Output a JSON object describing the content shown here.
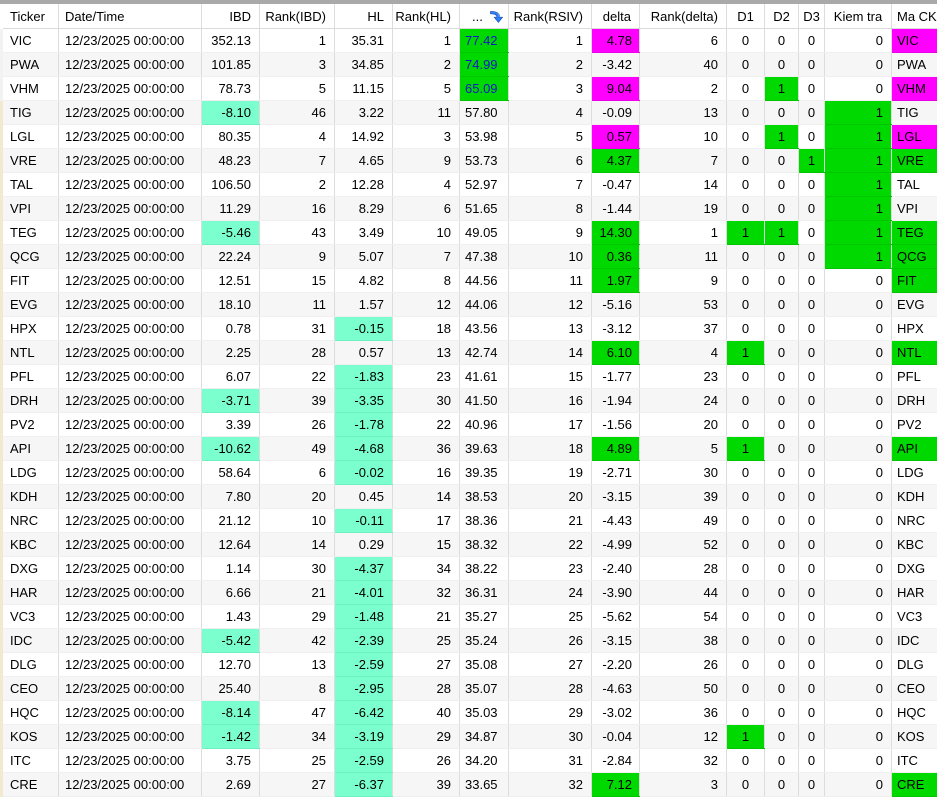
{
  "app": {
    "description": "stock exploration results table"
  },
  "colors": {
    "highlight_green": "#00d900",
    "highlight_magenta": "#ff00ff",
    "highlight_teal": "#7bffcf",
    "rsiv_text_blue": "#1414cc",
    "sort_icon_blue": "#2f7df6",
    "top_strip_gray": "#a9a9a9"
  },
  "table": {
    "columns": [
      {
        "key": "ticker",
        "label": "Ticker",
        "align": "left",
        "header_align": "left"
      },
      {
        "key": "datetime",
        "label": "Date/Time",
        "align": "left",
        "header_align": "left"
      },
      {
        "key": "ibd",
        "label": "IBD",
        "align": "right",
        "header_align": "right"
      },
      {
        "key": "rank_ibd",
        "label": "Rank(IBD)",
        "align": "right",
        "header_align": "right"
      },
      {
        "key": "hl",
        "label": "HL",
        "align": "right",
        "header_align": "right"
      },
      {
        "key": "rank_hl",
        "label": "Rank(HL)",
        "align": "right",
        "header_align": "right"
      },
      {
        "key": "rsiv",
        "label": "...",
        "align": "left",
        "header_align": "left",
        "sort_icon": "sort-descending-icon"
      },
      {
        "key": "rank_rsiv",
        "label": "Rank(RSIV)",
        "align": "right",
        "header_align": "right"
      },
      {
        "key": "delta",
        "label": "delta",
        "align": "right",
        "header_align": "right"
      },
      {
        "key": "rank_delta",
        "label": "Rank(delta)",
        "align": "right",
        "header_align": "right"
      },
      {
        "key": "d1",
        "label": "D1",
        "align": "center",
        "header_align": "center"
      },
      {
        "key": "d2",
        "label": "D2",
        "align": "center",
        "header_align": "center"
      },
      {
        "key": "d3",
        "label": "D3",
        "align": "center",
        "header_align": "center"
      },
      {
        "key": "kiem_tra",
        "label": "Kiem tra",
        "align": "right",
        "header_align": "center"
      },
      {
        "key": "ma_ck",
        "label": "Ma CK",
        "align": "left",
        "header_align": "left"
      }
    ],
    "rows": [
      [
        "VIC",
        "12/23/2025 00:00:00",
        "352.13",
        "1",
        "35.31",
        "1",
        {
          "v": "77.42",
          "bg": "green",
          "fg": "blue"
        },
        "1",
        {
          "v": "4.78",
          "bg": "magenta"
        },
        "6",
        "0",
        "0",
        "0",
        "0",
        {
          "v": "VIC",
          "bg": "magenta"
        }
      ],
      [
        "PWA",
        "12/23/2025 00:00:00",
        "101.85",
        "3",
        "34.85",
        "2",
        {
          "v": "74.99",
          "bg": "green",
          "fg": "blue"
        },
        "2",
        "-3.42",
        "40",
        "0",
        "0",
        "0",
        "0",
        "PWA"
      ],
      [
        "VHM",
        "12/23/2025 00:00:00",
        "78.73",
        "5",
        "11.15",
        "5",
        {
          "v": "65.09",
          "bg": "green",
          "fg": "blue"
        },
        "3",
        {
          "v": "9.04",
          "bg": "magenta"
        },
        "2",
        "0",
        {
          "v": "1",
          "bg": "green"
        },
        "0",
        "0",
        {
          "v": "VHM",
          "bg": "magenta"
        }
      ],
      [
        "TIG",
        "12/23/2025 00:00:00",
        {
          "v": "-8.10",
          "bg": "teal"
        },
        "46",
        "3.22",
        "11",
        "57.80",
        "4",
        "-0.09",
        "13",
        "0",
        "0",
        "0",
        {
          "v": "1",
          "bg": "green"
        },
        "TIG"
      ],
      [
        "LGL",
        "12/23/2025 00:00:00",
        "80.35",
        "4",
        "14.92",
        "3",
        "53.98",
        "5",
        {
          "v": "0.57",
          "bg": "magenta"
        },
        "10",
        "0",
        {
          "v": "1",
          "bg": "green"
        },
        "0",
        {
          "v": "1",
          "bg": "green"
        },
        {
          "v": "LGL",
          "bg": "magenta"
        }
      ],
      [
        "VRE",
        "12/23/2025 00:00:00",
        "48.23",
        "7",
        "4.65",
        "9",
        "53.73",
        "6",
        {
          "v": "4.37",
          "bg": "green"
        },
        "7",
        "0",
        "0",
        {
          "v": "1",
          "bg": "green"
        },
        {
          "v": "1",
          "bg": "green"
        },
        {
          "v": "VRE",
          "bg": "green"
        }
      ],
      [
        "TAL",
        "12/23/2025 00:00:00",
        "106.50",
        "2",
        "12.28",
        "4",
        "52.97",
        "7",
        "-0.47",
        "14",
        "0",
        "0",
        "0",
        {
          "v": "1",
          "bg": "green"
        },
        "TAL"
      ],
      [
        "VPI",
        "12/23/2025 00:00:00",
        "11.29",
        "16",
        "8.29",
        "6",
        "51.65",
        "8",
        "-1.44",
        "19",
        "0",
        "0",
        "0",
        {
          "v": "1",
          "bg": "green"
        },
        "VPI"
      ],
      [
        "TEG",
        "12/23/2025 00:00:00",
        {
          "v": "-5.46",
          "bg": "teal"
        },
        "43",
        "3.49",
        "10",
        "49.05",
        "9",
        {
          "v": "14.30",
          "bg": "green"
        },
        "1",
        {
          "v": "1",
          "bg": "green"
        },
        {
          "v": "1",
          "bg": "green"
        },
        "0",
        {
          "v": "1",
          "bg": "green"
        },
        {
          "v": "TEG",
          "bg": "green"
        }
      ],
      [
        "QCG",
        "12/23/2025 00:00:00",
        "22.24",
        "9",
        "5.07",
        "7",
        "47.38",
        "10",
        {
          "v": "0.36",
          "bg": "green"
        },
        "11",
        "0",
        "0",
        "0",
        {
          "v": "1",
          "bg": "green"
        },
        {
          "v": "QCG",
          "bg": "green"
        }
      ],
      [
        "FIT",
        "12/23/2025 00:00:00",
        "12.51",
        "15",
        "4.82",
        "8",
        "44.56",
        "11",
        {
          "v": "1.97",
          "bg": "green"
        },
        "9",
        "0",
        "0",
        "0",
        "0",
        {
          "v": "FIT",
          "bg": "green"
        }
      ],
      [
        "EVG",
        "12/23/2025 00:00:00",
        "18.10",
        "11",
        "1.57",
        "12",
        "44.06",
        "12",
        "-5.16",
        "53",
        "0",
        "0",
        "0",
        "0",
        "EVG"
      ],
      [
        "HPX",
        "12/23/2025 00:00:00",
        "0.78",
        "31",
        {
          "v": "-0.15",
          "bg": "teal"
        },
        "18",
        "43.56",
        "13",
        "-3.12",
        "37",
        "0",
        "0",
        "0",
        "0",
        "HPX"
      ],
      [
        "NTL",
        "12/23/2025 00:00:00",
        "2.25",
        "28",
        "0.57",
        "13",
        "42.74",
        "14",
        {
          "v": "6.10",
          "bg": "green"
        },
        "4",
        {
          "v": "1",
          "bg": "green"
        },
        "0",
        "0",
        "0",
        {
          "v": "NTL",
          "bg": "green"
        }
      ],
      [
        "PFL",
        "12/23/2025 00:00:00",
        "6.07",
        "22",
        {
          "v": "-1.83",
          "bg": "teal"
        },
        "23",
        "41.61",
        "15",
        "-1.77",
        "23",
        "0",
        "0",
        "0",
        "0",
        "PFL"
      ],
      [
        "DRH",
        "12/23/2025 00:00:00",
        {
          "v": "-3.71",
          "bg": "teal"
        },
        "39",
        {
          "v": "-3.35",
          "bg": "teal"
        },
        "30",
        "41.50",
        "16",
        "-1.94",
        "24",
        "0",
        "0",
        "0",
        "0",
        "DRH"
      ],
      [
        "PV2",
        "12/23/2025 00:00:00",
        "3.39",
        "26",
        {
          "v": "-1.78",
          "bg": "teal"
        },
        "22",
        "40.96",
        "17",
        "-1.56",
        "20",
        "0",
        "0",
        "0",
        "0",
        "PV2"
      ],
      [
        "API",
        "12/23/2025 00:00:00",
        {
          "v": "-10.62",
          "bg": "teal"
        },
        "49",
        {
          "v": "-4.68",
          "bg": "teal"
        },
        "36",
        "39.63",
        "18",
        {
          "v": "4.89",
          "bg": "green"
        },
        "5",
        {
          "v": "1",
          "bg": "green"
        },
        "0",
        "0",
        "0",
        {
          "v": "API",
          "bg": "green"
        }
      ],
      [
        "LDG",
        "12/23/2025 00:00:00",
        "58.64",
        "6",
        {
          "v": "-0.02",
          "bg": "teal"
        },
        "16",
        "39.35",
        "19",
        "-2.71",
        "30",
        "0",
        "0",
        "0",
        "0",
        "LDG"
      ],
      [
        "KDH",
        "12/23/2025 00:00:00",
        "7.80",
        "20",
        "0.45",
        "14",
        "38.53",
        "20",
        "-3.15",
        "39",
        "0",
        "0",
        "0",
        "0",
        "KDH"
      ],
      [
        "NRC",
        "12/23/2025 00:00:00",
        "21.12",
        "10",
        {
          "v": "-0.11",
          "bg": "teal"
        },
        "17",
        "38.36",
        "21",
        "-4.43",
        "49",
        "0",
        "0",
        "0",
        "0",
        "NRC"
      ],
      [
        "KBC",
        "12/23/2025 00:00:00",
        "12.64",
        "14",
        "0.29",
        "15",
        "38.32",
        "22",
        "-4.99",
        "52",
        "0",
        "0",
        "0",
        "0",
        "KBC"
      ],
      [
        "DXG",
        "12/23/2025 00:00:00",
        "1.14",
        "30",
        {
          "v": "-4.37",
          "bg": "teal"
        },
        "34",
        "38.22",
        "23",
        "-2.40",
        "28",
        "0",
        "0",
        "0",
        "0",
        "DXG"
      ],
      [
        "HAR",
        "12/23/2025 00:00:00",
        "6.66",
        "21",
        {
          "v": "-4.01",
          "bg": "teal"
        },
        "32",
        "36.31",
        "24",
        "-3.90",
        "44",
        "0",
        "0",
        "0",
        "0",
        "HAR"
      ],
      [
        "VC3",
        "12/23/2025 00:00:00",
        "1.43",
        "29",
        {
          "v": "-1.48",
          "bg": "teal"
        },
        "21",
        "35.27",
        "25",
        "-5.62",
        "54",
        "0",
        "0",
        "0",
        "0",
        "VC3"
      ],
      [
        "IDC",
        "12/23/2025 00:00:00",
        {
          "v": "-5.42",
          "bg": "teal"
        },
        "42",
        {
          "v": "-2.39",
          "bg": "teal"
        },
        "25",
        "35.24",
        "26",
        "-3.15",
        "38",
        "0",
        "0",
        "0",
        "0",
        "IDC"
      ],
      [
        "DLG",
        "12/23/2025 00:00:00",
        "12.70",
        "13",
        {
          "v": "-2.59",
          "bg": "teal"
        },
        "27",
        "35.08",
        "27",
        "-2.20",
        "26",
        "0",
        "0",
        "0",
        "0",
        "DLG"
      ],
      [
        "CEO",
        "12/23/2025 00:00:00",
        "25.40",
        "8",
        {
          "v": "-2.95",
          "bg": "teal"
        },
        "28",
        "35.07",
        "28",
        "-4.63",
        "50",
        "0",
        "0",
        "0",
        "0",
        "CEO"
      ],
      [
        "HQC",
        "12/23/2025 00:00:00",
        {
          "v": "-8.14",
          "bg": "teal"
        },
        "47",
        {
          "v": "-6.42",
          "bg": "teal"
        },
        "40",
        "35.03",
        "29",
        "-3.02",
        "36",
        "0",
        "0",
        "0",
        "0",
        "HQC"
      ],
      [
        "KOS",
        "12/23/2025 00:00:00",
        {
          "v": "-1.42",
          "bg": "teal"
        },
        "34",
        {
          "v": "-3.19",
          "bg": "teal"
        },
        "29",
        "34.87",
        "30",
        "-0.04",
        "12",
        {
          "v": "1",
          "bg": "green"
        },
        "0",
        "0",
        "0",
        "KOS"
      ],
      [
        "ITC",
        "12/23/2025 00:00:00",
        "3.75",
        "25",
        {
          "v": "-2.59",
          "bg": "teal"
        },
        "26",
        "34.20",
        "31",
        "-2.84",
        "32",
        "0",
        "0",
        "0",
        "0",
        "ITC"
      ],
      [
        "CRE",
        "12/23/2025 00:00:00",
        "2.69",
        "27",
        {
          "v": "-6.37",
          "bg": "teal"
        },
        "39",
        "33.65",
        "32",
        {
          "v": "7.12",
          "bg": "green"
        },
        "3",
        "0",
        "0",
        "0",
        "0",
        {
          "v": "CRE",
          "bg": "green"
        }
      ]
    ]
  }
}
